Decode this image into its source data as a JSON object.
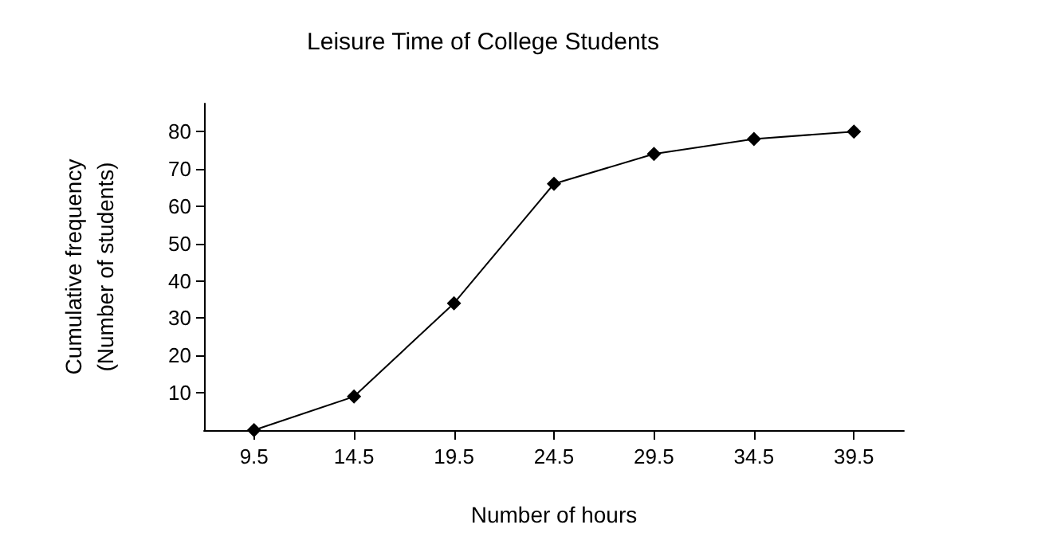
{
  "chart_data": {
    "type": "line",
    "title": "Leisure Time of College Students",
    "xlabel": "Number of hours",
    "ylabel": "Cumulative frequency\n(Number of students)",
    "x": [
      9.5,
      14.5,
      19.5,
      24.5,
      29.5,
      34.5,
      39.5
    ],
    "series": [
      {
        "color": "#000000",
        "values": [
          0,
          9,
          34,
          66,
          74,
          78,
          80
        ]
      }
    ],
    "xlim": [
      7,
      42
    ],
    "xticks": [
      9.5,
      14.5,
      19.5,
      24.5,
      29.5,
      34.5,
      39.5
    ],
    "ylim": [
      0,
      87.5
    ],
    "yticks": [
      10,
      20,
      30,
      40,
      50,
      60,
      70,
      80
    ],
    "grid": false,
    "marker": "diamond",
    "line_style": "solid"
  }
}
